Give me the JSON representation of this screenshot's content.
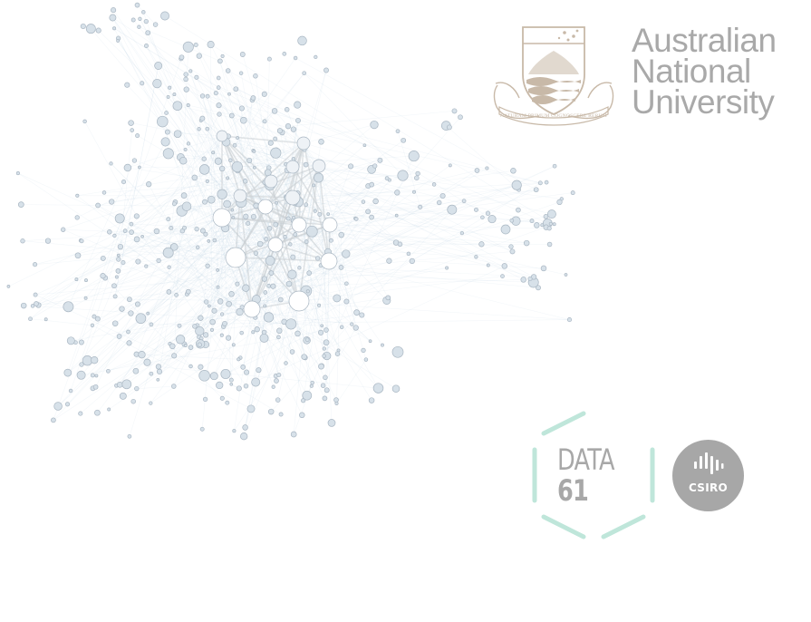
{
  "network": {
    "node_fill": "#d7e1e9",
    "node_stroke": "#aab7c3",
    "hub_fill": "#ffffff",
    "edge_color": "#bdd3e3"
  },
  "anu": {
    "line1": "Australian",
    "line2": "National",
    "line3": "University",
    "motto": "NATURAM PRIMUM COGNOSCERE RERUM",
    "color": "#a9a9a9"
  },
  "data61": {
    "line1": "DATA",
    "line2": "61",
    "hex_color": "#bfe6da"
  },
  "csiro": {
    "label": "CSIRO",
    "color": "#a7a7a7"
  }
}
